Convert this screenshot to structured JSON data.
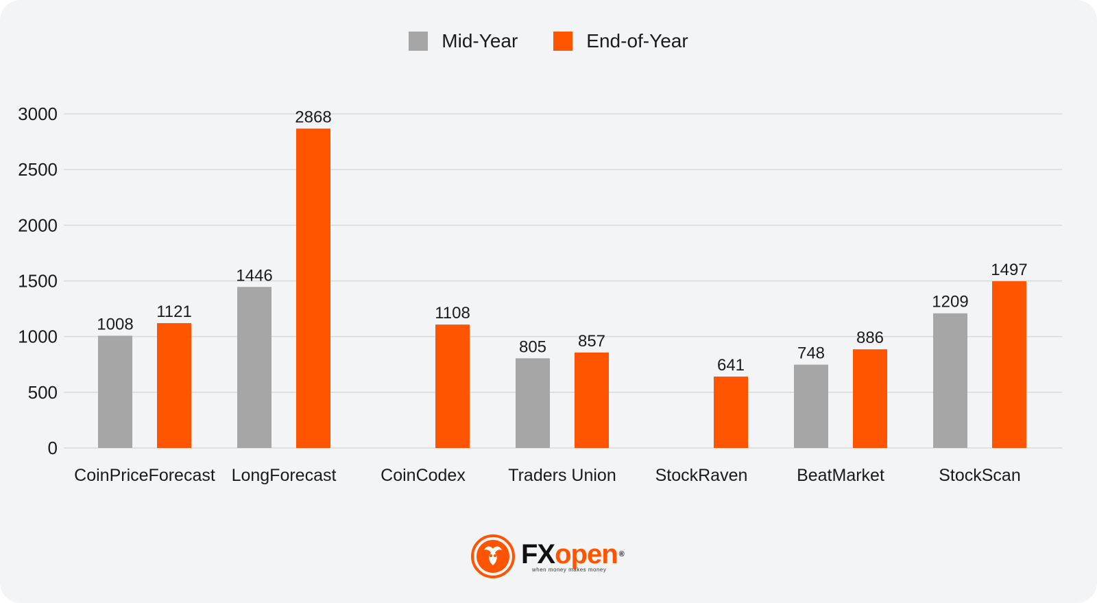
{
  "legend": [
    {
      "label": "Mid-Year",
      "color": "#a6a6a6"
    },
    {
      "label": "End-of-Year",
      "color": "#ff5500"
    }
  ],
  "logo": {
    "word_fx": "FX",
    "word_open": "open",
    "reg": "®",
    "tagline": "when money makes money"
  },
  "chart_data": {
    "type": "bar",
    "categories": [
      "CoinPriceForecast",
      "LongForecast",
      "CoinCodex",
      "Traders Union",
      "StockRaven",
      "BeatMarket",
      "StockScan"
    ],
    "series": [
      {
        "name": "Mid-Year",
        "color": "#a6a6a6",
        "values": [
          1008,
          1446,
          null,
          805,
          null,
          748,
          1209
        ]
      },
      {
        "name": "End-of-Year",
        "color": "#ff5500",
        "values": [
          1121,
          2868,
          1108,
          857,
          641,
          886,
          1497
        ]
      }
    ],
    "yticks": [
      0,
      500,
      1000,
      1500,
      2000,
      2500,
      3000
    ],
    "ylim": [
      0,
      3000
    ],
    "grid": true,
    "legend_position": "top-center"
  }
}
